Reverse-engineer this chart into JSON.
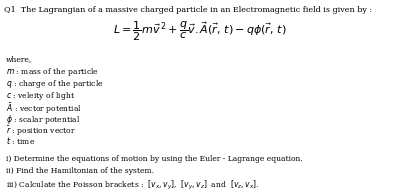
{
  "title_line": "Q1  The Lagrangian of a massive charged particle in an Electromagnetic field is given by :",
  "equation": "$L = \\dfrac{1}{2}m\\vec{v}^{\\,2} + \\dfrac{q}{c}\\vec{v}.\\vec{A}(\\vec{r},\\,t) - q\\phi(\\vec{r},\\,t)$",
  "where_lines": [
    "where,",
    "$m$ : mass of the particle",
    "$q$ : charge of the particle",
    "$c$ : veleity of light",
    "$\\bar{A}$ : vector potential",
    "$\\phi$ : scalar potential",
    "$\\bar{r}$ : position vector",
    "$t$ : time"
  ],
  "question_lines": [
    "i) Determine the equations of motion by using the Euler - Lagrange equation.",
    "ii) Find the Hamiltonian of the system.",
    "iii) Calculate the Poisson brackets :  $[v_x, v_y]$,  $[v_y, v_z]$  and  $[v_z, v_x]$."
  ],
  "bg_color": "#ffffff",
  "text_color": "#000000",
  "title_fontsize": 5.8,
  "eq_fontsize": 8.0,
  "body_fontsize": 5.5,
  "question_fontsize": 5.5
}
